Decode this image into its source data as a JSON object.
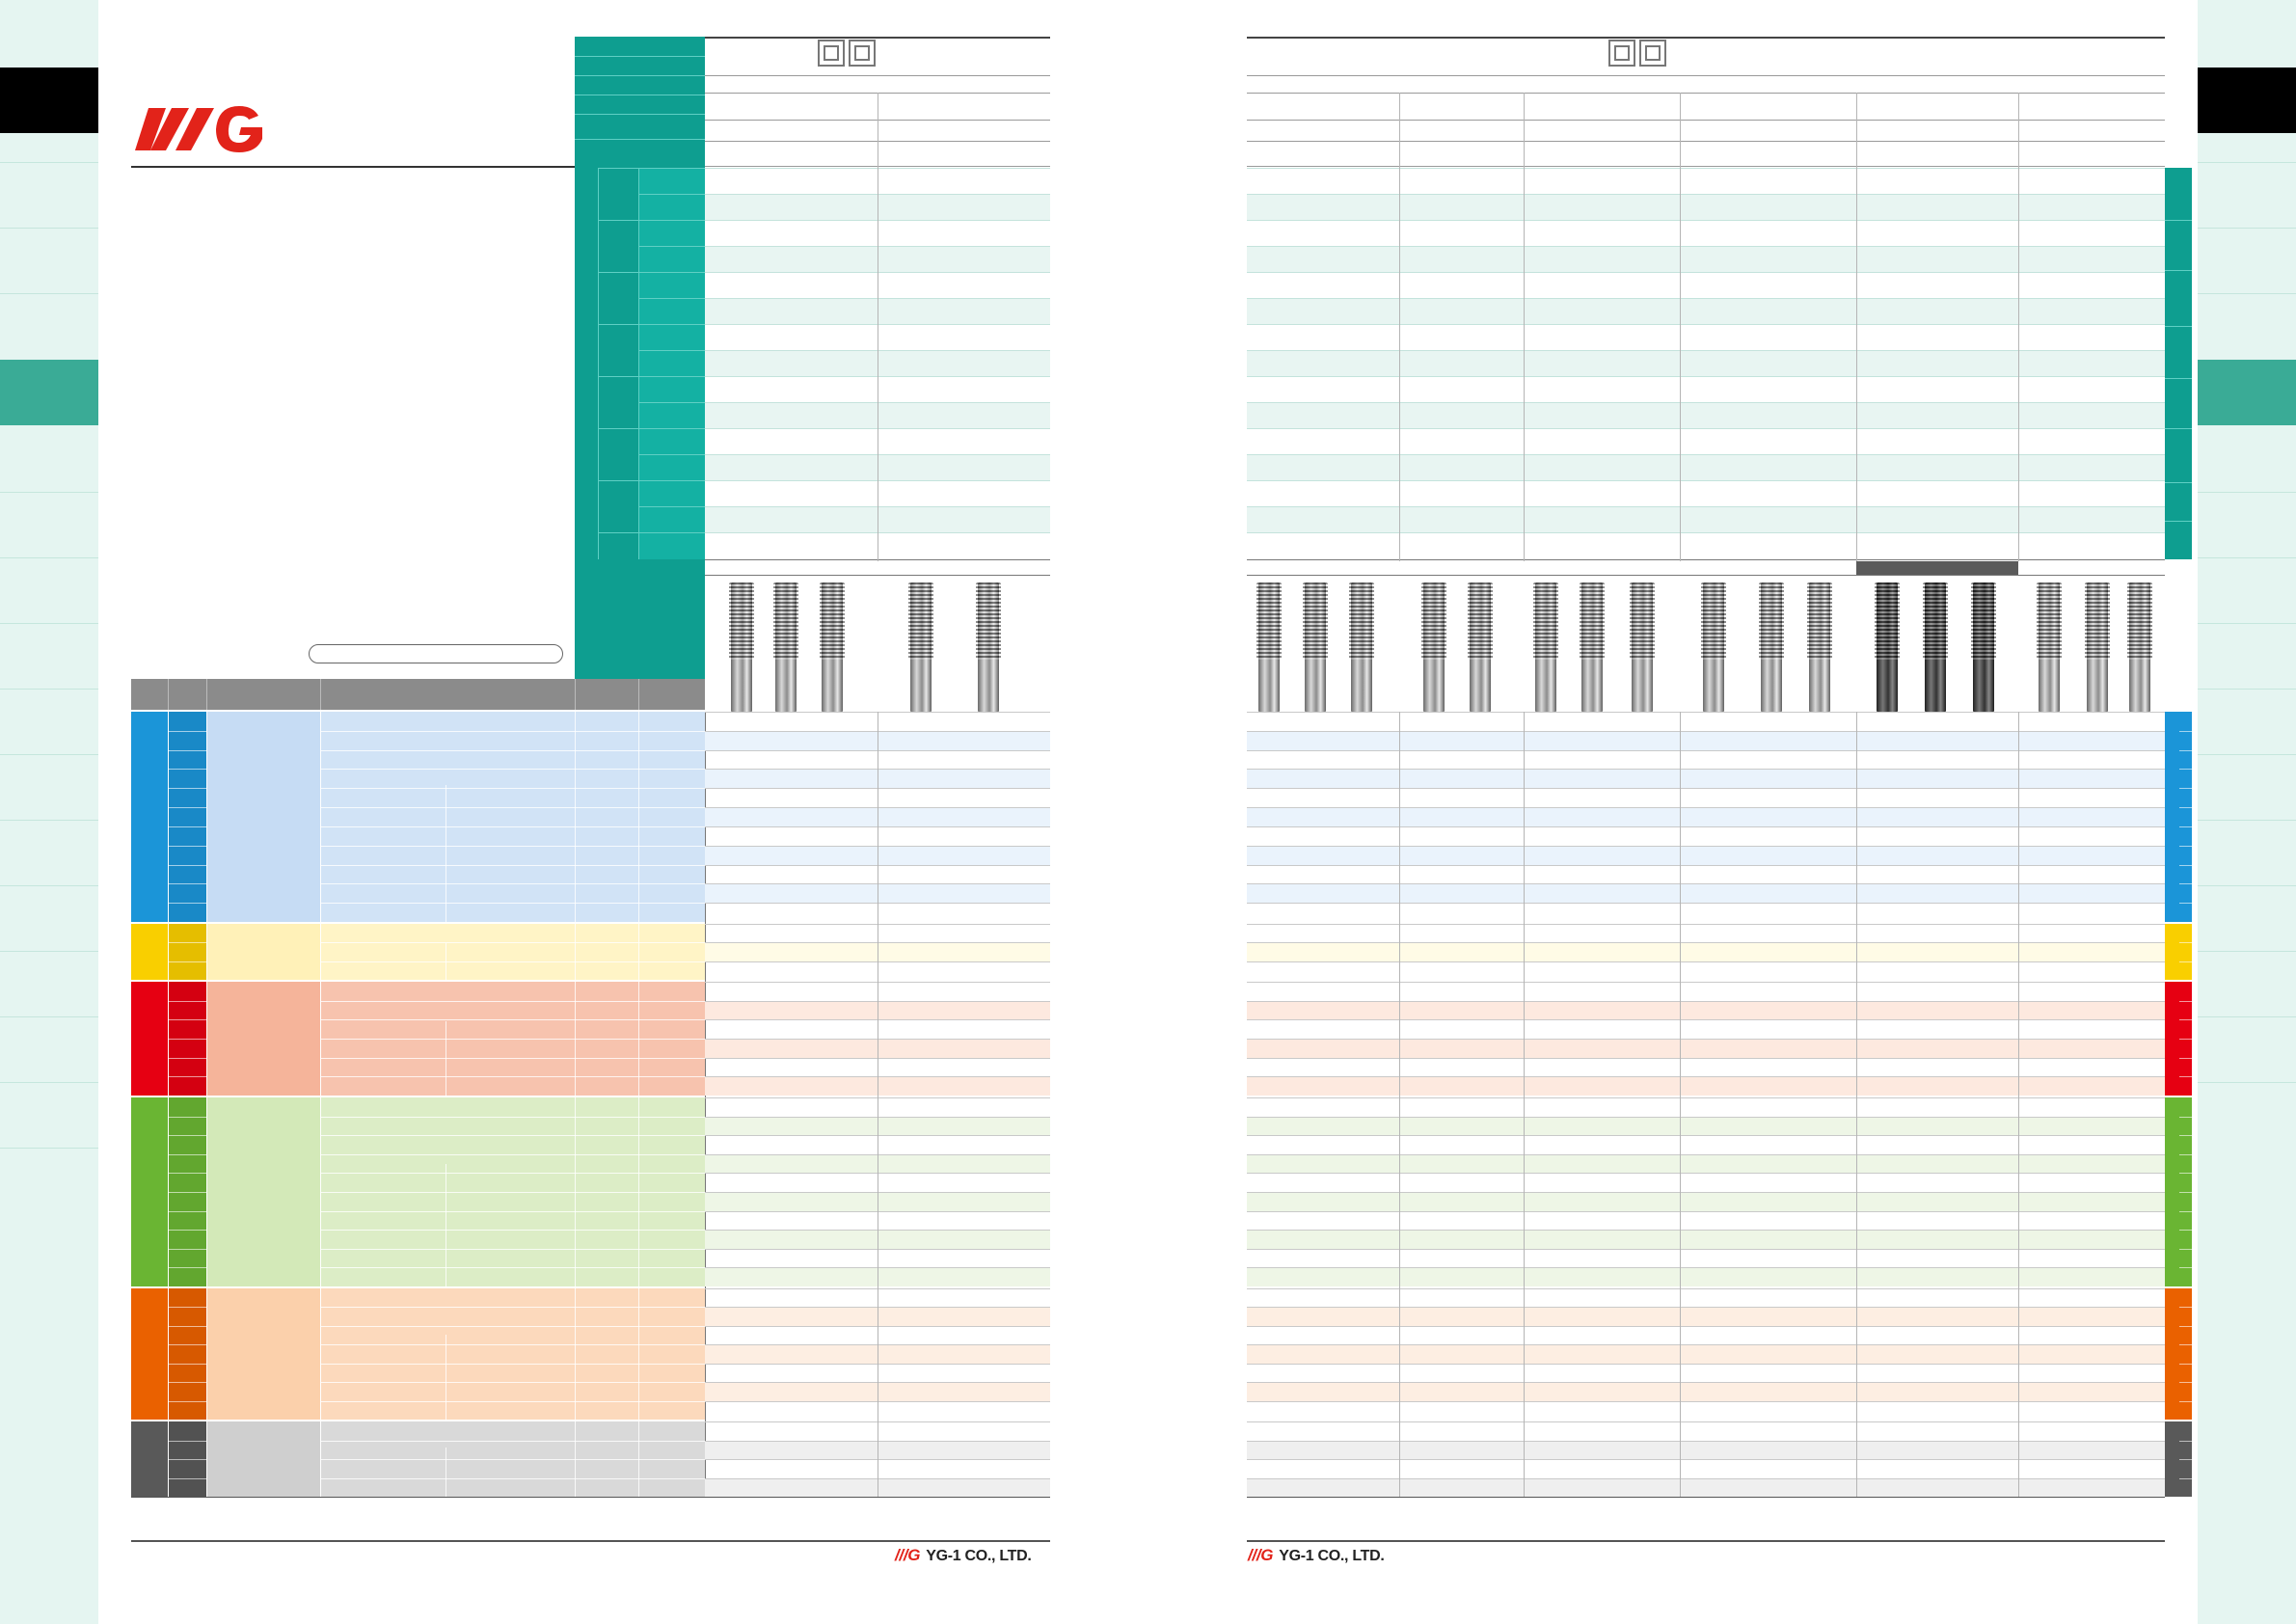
{
  "brand": {
    "company_name": "YG-1 CO., LTD.",
    "logo_text": "YG",
    "logo_color": "#e2231a"
  },
  "theme": {
    "accent_teal": "#0e9e90",
    "sidebar_bg": "#e5f5f1",
    "group_colors": [
      "#1b95d8",
      "#f9cf00",
      "#e60012",
      "#6ab533",
      "#ea6100",
      "#595959"
    ]
  }
}
